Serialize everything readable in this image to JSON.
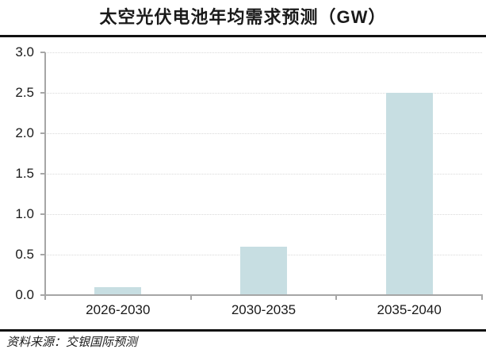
{
  "header": {
    "title": "太空光伏电池年均需求预测（GW）"
  },
  "footer": {
    "source_note": "资料来源：交银国际预测"
  },
  "chart_data": {
    "type": "bar",
    "title": "太空光伏电池年均需求预测（GW）",
    "categories": [
      "2026-2030",
      "2030-2035",
      "2035-2040"
    ],
    "values": [
      0.1,
      0.6,
      2.5
    ],
    "xlabel": "",
    "ylabel": "",
    "ylim": [
      0,
      3.0
    ],
    "ytick_labels": [
      "0.0",
      "0.5",
      "1.0",
      "1.5",
      "2.0",
      "2.5",
      "3.0"
    ],
    "grid": "horizontal-dotted",
    "legend": "none",
    "colors": {
      "bar_fill": "#c7dee2",
      "axis": "#a6a6a6",
      "gridline": "#d9d9d9",
      "text": "#1a1a1a",
      "rule": "#111111"
    }
  }
}
